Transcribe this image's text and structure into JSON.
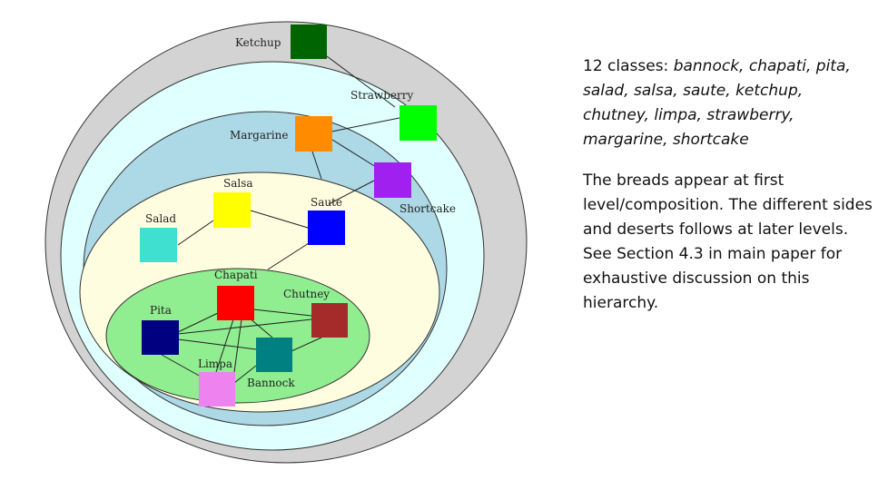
{
  "diagram": {
    "nodes": [
      {
        "key": "ketchup",
        "label": "Ketchup",
        "color": "#006400"
      },
      {
        "key": "strawberry",
        "label": "Strawberry",
        "color": "#00ff00"
      },
      {
        "key": "margarine",
        "label": "Margarine",
        "color": "#ff8c00"
      },
      {
        "key": "shortcake",
        "label": "Shortcake",
        "color": "#a020f0"
      },
      {
        "key": "salsa",
        "label": "Salsa",
        "color": "#ffff00"
      },
      {
        "key": "saute",
        "label": "Saute",
        "color": "#0000ff"
      },
      {
        "key": "salad",
        "label": "Salad",
        "color": "#40e0d0"
      },
      {
        "key": "chapati",
        "label": "Chapati",
        "color": "#ff0000"
      },
      {
        "key": "chutney",
        "label": "Chutney",
        "color": "#a52a2a"
      },
      {
        "key": "pita",
        "label": "Pita",
        "color": "#000080"
      },
      {
        "key": "limpa",
        "label": "Limpa",
        "color": "#ee82ee"
      },
      {
        "key": "bannock",
        "label": "Bannock",
        "color": "#008080"
      }
    ],
    "levels": [
      {
        "color": "#d3d3d3"
      },
      {
        "color": "#e0ffff"
      },
      {
        "color": "#add8e6"
      },
      {
        "color": "#fffde0"
      },
      {
        "color": "#90ee90"
      }
    ]
  },
  "caption": {
    "classes_prefix": "12 classes: ",
    "classes_list": "bannock, chapati, pita, salad, salsa, saute, ketchup, chutney, limpa, strawberry, margarine, shortcake",
    "description": "The breads appear at first level/composition. The different sides and deserts follows at later levels. See Section 4.3 in main paper for exhaustive discussion on this hierarchy."
  }
}
